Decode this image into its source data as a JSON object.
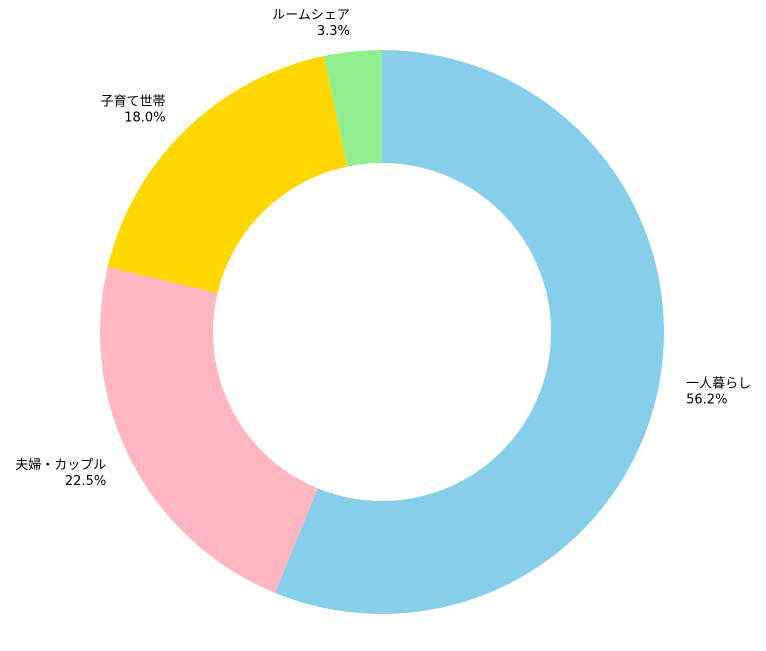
{
  "chart_data": {
    "type": "donut",
    "categories": [
      "一人暮らし",
      "夫婦・カップル",
      "子育て世帯",
      "ルームシェア"
    ],
    "values": [
      56.2,
      22.5,
      18.0,
      3.3
    ],
    "value_labels": [
      "56.2%",
      "22.5%",
      "18.0%",
      "3.3%"
    ],
    "colors": [
      "#87ceeb",
      "#ffb6c1",
      "#ffd700",
      "#90ee90"
    ]
  }
}
